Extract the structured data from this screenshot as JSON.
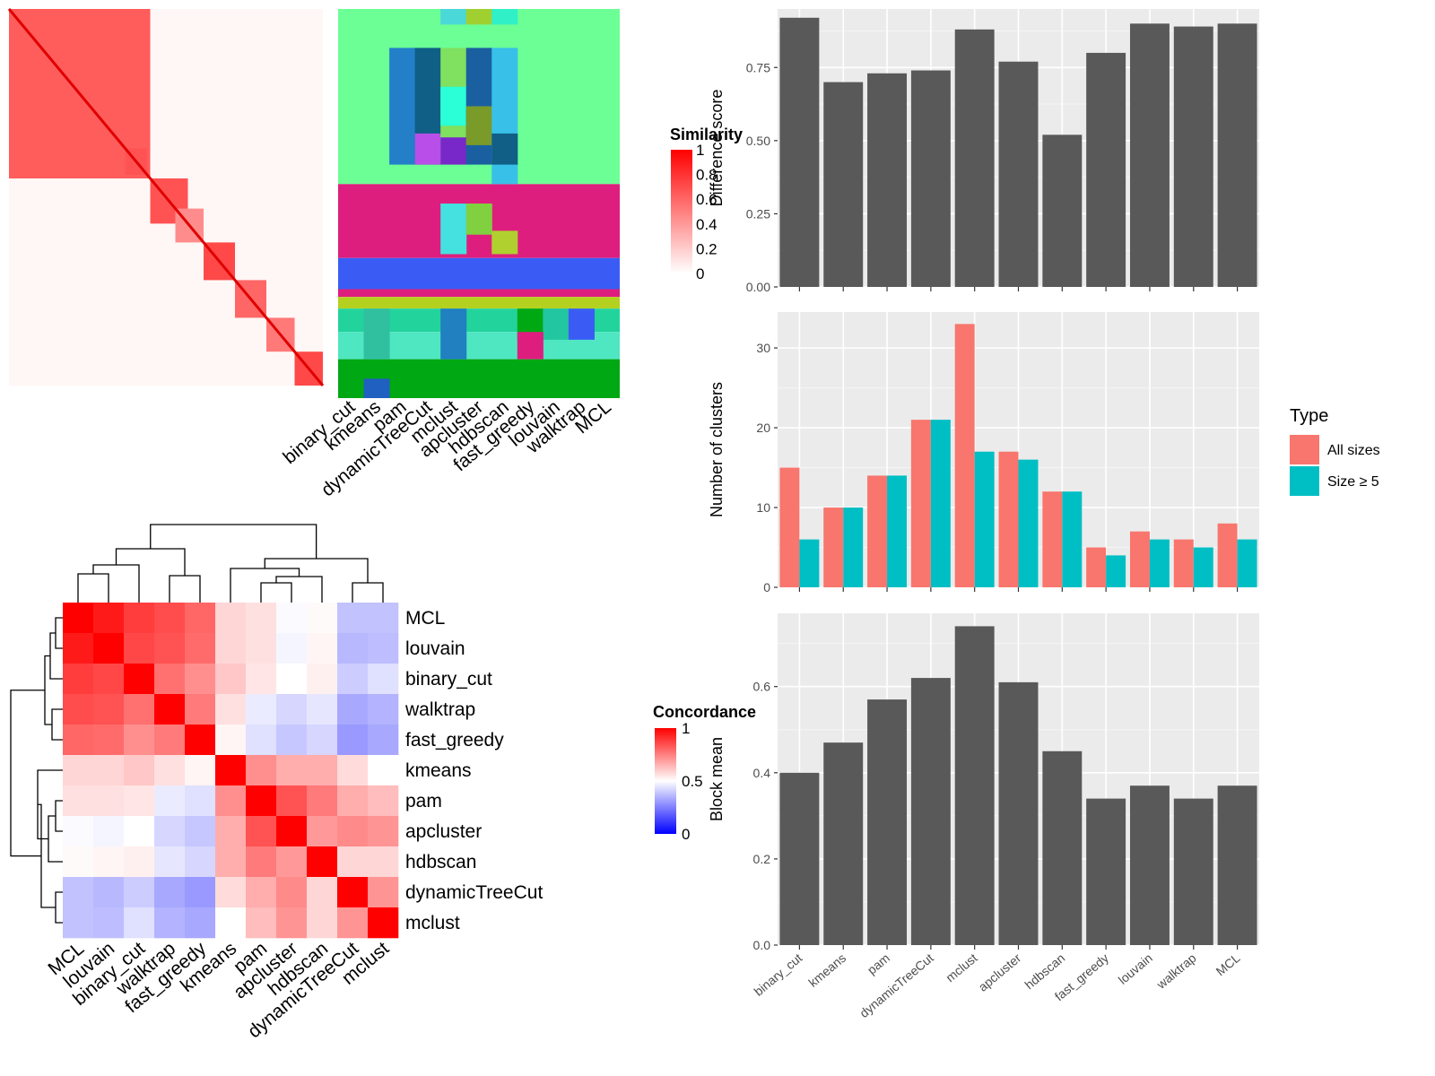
{
  "chart_data": [
    {
      "id": "similarity_heatmap",
      "type": "heatmap",
      "legend": {
        "title": "Similarity",
        "ticks": [
          "1",
          "0.8",
          "0.6",
          "0.4",
          "0.2",
          "0"
        ],
        "colors": [
          "#ffffff",
          "#ff0000"
        ]
      },
      "blocks": [
        {
          "start": 0.0,
          "end": 0.45,
          "strength": 0.85
        },
        {
          "start": 0.37,
          "end": 0.44,
          "strength": 0.9
        },
        {
          "start": 0.45,
          "end": 0.57,
          "strength": 0.9
        },
        {
          "start": 0.53,
          "end": 0.62,
          "strength": 0.6
        },
        {
          "start": 0.62,
          "end": 0.72,
          "strength": 0.95
        },
        {
          "start": 0.72,
          "end": 0.82,
          "strength": 0.8
        },
        {
          "start": 0.82,
          "end": 0.91,
          "strength": 0.7
        },
        {
          "start": 0.91,
          "end": 1.0,
          "strength": 0.95
        }
      ]
    },
    {
      "id": "cluster_assignments",
      "type": "heatmap",
      "columns": [
        "binary_cut",
        "kmeans",
        "pam",
        "dynamicTreeCut",
        "mclust",
        "apcluster",
        "hdbscan",
        "fast_greedy",
        "louvain",
        "walktrap",
        "MCL"
      ],
      "row_segments": [
        {
          "start": 0.0,
          "end": 0.45,
          "color": "#6bff95"
        },
        {
          "start": 0.45,
          "end": 0.64,
          "color": "#de1e7e"
        },
        {
          "start": 0.64,
          "end": 0.72,
          "color": "#3a5cf5"
        },
        {
          "start": 0.72,
          "end": 0.74,
          "color": "#de1e7e"
        },
        {
          "start": 0.74,
          "end": 0.77,
          "color": "#b5d120"
        },
        {
          "start": 0.77,
          "end": 0.83,
          "color": "#22d39c"
        },
        {
          "start": 0.83,
          "end": 0.9,
          "color": "#4fe6c2"
        },
        {
          "start": 0.9,
          "end": 1.0,
          "color": "#00a814"
        }
      ],
      "patches": [
        {
          "col": 2,
          "start": 0.1,
          "end": 0.4,
          "color": "#2380c8"
        },
        {
          "col": 3,
          "start": 0.1,
          "end": 0.4,
          "color": "#0f5f86"
        },
        {
          "col": 3,
          "start": 0.32,
          "end": 0.4,
          "color": "#b84fe8"
        },
        {
          "col": 4,
          "start": 0.0,
          "end": 0.04,
          "color": "#4ad8d8"
        },
        {
          "col": 4,
          "start": 0.1,
          "end": 0.4,
          "color": "#80e060"
        },
        {
          "col": 4,
          "start": 0.2,
          "end": 0.3,
          "color": "#2affd8"
        },
        {
          "col": 4,
          "start": 0.33,
          "end": 0.4,
          "color": "#7828c8"
        },
        {
          "col": 5,
          "start": 0.0,
          "end": 0.04,
          "color": "#a0d030"
        },
        {
          "col": 5,
          "start": 0.1,
          "end": 0.4,
          "color": "#1a60a0"
        },
        {
          "col": 5,
          "start": 0.25,
          "end": 0.35,
          "color": "#7a9a2a"
        },
        {
          "col": 6,
          "start": 0.0,
          "end": 0.04,
          "color": "#30f0c8"
        },
        {
          "col": 6,
          "start": 0.1,
          "end": 0.45,
          "color": "#38c0e8"
        },
        {
          "col": 6,
          "start": 0.32,
          "end": 0.4,
          "color": "#115f86"
        },
        {
          "col": 4,
          "start": 0.5,
          "end": 0.63,
          "color": "#45e0e0"
        },
        {
          "col": 5,
          "start": 0.5,
          "end": 0.58,
          "color": "#80d040"
        },
        {
          "col": 6,
          "start": 0.57,
          "end": 0.63,
          "color": "#b0d030"
        },
        {
          "col": 1,
          "start": 0.77,
          "end": 0.9,
          "color": "#30c0a0"
        },
        {
          "col": 4,
          "start": 0.77,
          "end": 0.9,
          "color": "#2080c0"
        },
        {
          "col": 7,
          "start": 0.77,
          "end": 0.85,
          "color": "#00a814"
        },
        {
          "col": 8,
          "start": 0.77,
          "end": 0.85,
          "color": "#22c6a0"
        },
        {
          "col": 9,
          "start": 0.77,
          "end": 0.85,
          "color": "#3a5cf5"
        },
        {
          "col": 7,
          "start": 0.83,
          "end": 0.9,
          "color": "#de1e7e"
        },
        {
          "col": 1,
          "start": 0.95,
          "end": 1.0,
          "color": "#2060c0"
        }
      ]
    },
    {
      "id": "concordance_heatmap",
      "type": "heatmap",
      "legend": {
        "title": "Concordance",
        "ticks": [
          "1",
          "0.5",
          "0"
        ],
        "colors": [
          "#0000ff",
          "#ffffff",
          "#ff0000"
        ]
      },
      "labels": [
        "MCL",
        "louvain",
        "binary_cut",
        "walktrap",
        "fast_greedy",
        "kmeans",
        "pam",
        "apcluster",
        "hdbscan",
        "dynamicTreeCut",
        "mclust"
      ],
      "values": [
        [
          1.0,
          0.95,
          0.88,
          0.85,
          0.8,
          0.58,
          0.56,
          0.49,
          0.51,
          0.38,
          0.38
        ],
        [
          0.95,
          1.0,
          0.86,
          0.84,
          0.79,
          0.58,
          0.56,
          0.48,
          0.52,
          0.36,
          0.37
        ],
        [
          0.88,
          0.86,
          1.0,
          0.78,
          0.72,
          0.61,
          0.55,
          0.5,
          0.53,
          0.4,
          0.44
        ],
        [
          0.85,
          0.84,
          0.78,
          1.0,
          0.76,
          0.56,
          0.46,
          0.42,
          0.45,
          0.33,
          0.35
        ],
        [
          0.8,
          0.79,
          0.72,
          0.76,
          1.0,
          0.52,
          0.44,
          0.39,
          0.42,
          0.3,
          0.33
        ],
        [
          0.58,
          0.58,
          0.61,
          0.56,
          0.52,
          1.0,
          0.72,
          0.66,
          0.66,
          0.57,
          0.5
        ],
        [
          0.56,
          0.56,
          0.55,
          0.46,
          0.44,
          0.72,
          1.0,
          0.84,
          0.76,
          0.66,
          0.63
        ],
        [
          0.49,
          0.48,
          0.5,
          0.42,
          0.39,
          0.66,
          0.84,
          1.0,
          0.7,
          0.73,
          0.71
        ],
        [
          0.51,
          0.52,
          0.53,
          0.45,
          0.42,
          0.66,
          0.76,
          0.7,
          1.0,
          0.58,
          0.58
        ],
        [
          0.38,
          0.36,
          0.4,
          0.33,
          0.3,
          0.57,
          0.66,
          0.73,
          0.58,
          1.0,
          0.71
        ],
        [
          0.38,
          0.37,
          0.44,
          0.35,
          0.33,
          0.5,
          0.63,
          0.71,
          0.58,
          0.71,
          1.0
        ]
      ]
    },
    {
      "id": "difference_score",
      "type": "bar",
      "categories": [
        "binary_cut",
        "kmeans",
        "pam",
        "dynamicTreeCut",
        "mclust",
        "apcluster",
        "hdbscan",
        "fast_greedy",
        "louvain",
        "walktrap",
        "MCL"
      ],
      "values": [
        0.92,
        0.7,
        0.73,
        0.74,
        0.88,
        0.77,
        0.52,
        0.8,
        0.9,
        0.89,
        0.9
      ],
      "ylabel": "Difference score",
      "ylim": [
        0,
        0.95
      ],
      "yticks": [
        0,
        0.25,
        0.5,
        0.75
      ],
      "ytick_labels": [
        "0.00",
        "0.25",
        "0.50",
        "0.75"
      ],
      "grid": true
    },
    {
      "id": "number_of_clusters",
      "type": "bar",
      "categories": [
        "binary_cut",
        "kmeans",
        "pam",
        "dynamicTreeCut",
        "mclust",
        "apcluster",
        "hdbscan",
        "fast_greedy",
        "louvain",
        "walktrap",
        "MCL"
      ],
      "series": [
        {
          "name": "All sizes",
          "color": "#f8766d",
          "values": [
            15,
            10,
            14,
            21,
            33,
            17,
            12,
            5,
            7,
            6,
            8
          ]
        },
        {
          "name": "Size ≥ 5",
          "color": "#00bfc4",
          "values": [
            6,
            10,
            14,
            21,
            17,
            16,
            12,
            4,
            6,
            5,
            6
          ]
        }
      ],
      "ylabel": "Number of clusters",
      "ylim": [
        0,
        34.5
      ],
      "yticks": [
        0,
        10,
        20,
        30
      ],
      "ytick_labels": [
        "0",
        "10",
        "20",
        "30"
      ],
      "grid": true,
      "legend": {
        "title": "Type",
        "position": "right"
      }
    },
    {
      "id": "block_mean",
      "type": "bar",
      "categories": [
        "binary_cut",
        "kmeans",
        "pam",
        "dynamicTreeCut",
        "mclust",
        "apcluster",
        "hdbscan",
        "fast_greedy",
        "louvain",
        "walktrap",
        "MCL"
      ],
      "values": [
        0.4,
        0.47,
        0.57,
        0.62,
        0.74,
        0.61,
        0.45,
        0.34,
        0.37,
        0.34,
        0.37
      ],
      "ylabel": "Block mean",
      "ylim": [
        0,
        0.77
      ],
      "yticks": [
        0,
        0.2,
        0.4,
        0.6
      ],
      "ytick_labels": [
        "0.0",
        "0.2",
        "0.4",
        "0.6"
      ],
      "grid": true
    }
  ]
}
